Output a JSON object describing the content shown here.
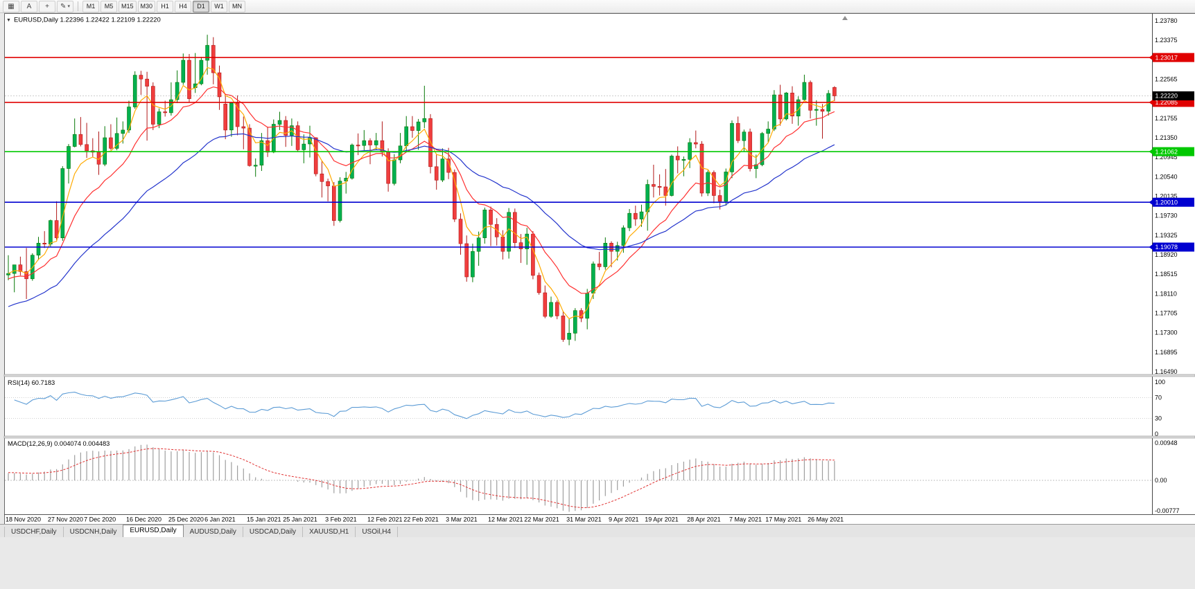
{
  "toolbar": {
    "icon_buttons": [
      {
        "name": "chart-grid",
        "glyph": "▦"
      },
      {
        "name": "text-tool",
        "glyph": "A"
      },
      {
        "name": "crosshair-tool",
        "glyph": "+"
      },
      {
        "name": "draw-tools",
        "glyph": "✎",
        "caret": "▾"
      }
    ],
    "timeframes": [
      "M1",
      "M5",
      "M15",
      "M30",
      "H1",
      "H4",
      "D1",
      "W1",
      "MN"
    ],
    "active_timeframe": "D1"
  },
  "bottom_tabs": {
    "active": "EURUSD,Daily",
    "tabs": [
      "USDCHF,Daily",
      "USDCNH,Daily",
      "EURUSD,Daily",
      "AUDUSD,Daily",
      "USDCAD,Daily",
      "XAUUSD,H1",
      "USOil,H4"
    ]
  },
  "chart_data": [
    {
      "type": "candlestick",
      "symbol": "EURUSD",
      "timeframe": "Daily",
      "title": "EURUSD,Daily",
      "collapse_icon": "▼",
      "quote": {
        "open": "1.22396",
        "high": "1.22422",
        "low": "1.22109",
        "close": "1.22220"
      },
      "ylim": [
        1.16433,
        1.23924
      ],
      "bull_color": "#00b050",
      "bull_border": "#067806",
      "bear_color": "#f03e3e",
      "bear_border": "#b01818",
      "y_ticks": [
        "1.23780",
        "1.23375",
        "1.22970",
        "1.22565",
        "1.22160",
        "1.21755",
        "1.21350",
        "1.20945",
        "1.20540",
        "1.20135",
        "1.19730",
        "1.19325",
        "1.18920",
        "1.18515",
        "1.18110",
        "1.17705",
        "1.17300",
        "1.16895",
        "1.16490"
      ],
      "x_ticks": [
        {
          "label": "18 Nov 2020",
          "index": 0
        },
        {
          "label": "27 Nov 2020",
          "index": 7
        },
        {
          "label": "7 Dec 2020",
          "index": 13
        },
        {
          "label": "16 Dec 2020",
          "index": 20
        },
        {
          "label": "25 Dec 2020",
          "index": 27
        },
        {
          "label": "6 Jan 2021",
          "index": 33
        },
        {
          "label": "15 Jan 2021",
          "index": 40
        },
        {
          "label": "25 Jan 2021",
          "index": 46
        },
        {
          "label": "3 Feb 2021",
          "index": 53
        },
        {
          "label": "12 Feb 2021",
          "index": 60
        },
        {
          "label": "22 Feb 2021",
          "index": 66
        },
        {
          "label": "3 Mar 2021",
          "index": 73
        },
        {
          "label": "12 Mar 2021",
          "index": 80
        },
        {
          "label": "22 Mar 2021",
          "index": 86
        },
        {
          "label": "31 Mar 2021",
          "index": 93
        },
        {
          "label": "9 Apr 2021",
          "index": 100
        },
        {
          "label": "19 Apr 2021",
          "index": 106
        },
        {
          "label": "28 Apr 2021",
          "index": 113
        },
        {
          "label": "7 May 2021",
          "index": 120
        },
        {
          "label": "17 May 2021",
          "index": 126
        },
        {
          "label": "26 May 2021",
          "index": 133
        }
      ],
      "horizontal_lines": [
        {
          "price": 1.23017,
          "label": "1.23017",
          "color": "#e00000"
        },
        {
          "price": 1.22085,
          "label": "1.22085",
          "color": "#e00000"
        },
        {
          "price": 1.21062,
          "label": "1.21062",
          "color": "#00c800"
        },
        {
          "price": 1.2001,
          "label": "1.20010",
          "color": "#0000d0"
        },
        {
          "price": 1.19078,
          "label": "1.19078",
          "color": "#0000d0"
        }
      ],
      "current_price": {
        "value": 1.2222,
        "label": "1.22220",
        "badge_color": "#000000"
      },
      "moving_averages": [
        {
          "type": "ema",
          "period": 5,
          "color": "#ffaa00",
          "seed": 1.1853
        },
        {
          "type": "ema",
          "period": 13,
          "color": "#ff3030",
          "seed": 1.184
        },
        {
          "type": "ema",
          "period": 34,
          "color": "#2233cc",
          "seed": 1.178
        }
      ],
      "candles": [
        [
          1.185,
          1.1891,
          1.1839,
          1.1853
        ],
        [
          1.1853,
          1.1868,
          1.1814,
          1.1871
        ],
        [
          1.1871,
          1.1888,
          1.1849,
          1.1857
        ],
        [
          1.1857,
          1.1906,
          1.18,
          1.1842
        ],
        [
          1.1842,
          1.1895,
          1.1838,
          1.1891
        ],
        [
          1.1891,
          1.1929,
          1.1881,
          1.1916
        ],
        [
          1.1916,
          1.1941,
          1.1906,
          1.1914
        ],
        [
          1.1914,
          1.1965,
          1.1909,
          1.1963
        ],
        [
          1.1963,
          1.2003,
          1.1923,
          1.1927
        ],
        [
          1.1927,
          1.2076,
          1.1921,
          1.2071
        ],
        [
          1.2071,
          1.2122,
          1.204,
          1.2117
        ],
        [
          1.2117,
          1.2175,
          1.2115,
          1.2142
        ],
        [
          1.2142,
          1.2178,
          1.2117,
          1.2121
        ],
        [
          1.2121,
          1.2166,
          1.2093,
          1.2108
        ],
        [
          1.2108,
          1.2134,
          1.2095,
          1.2105
        ],
        [
          1.2105,
          1.2148,
          1.2058,
          1.208
        ],
        [
          1.208,
          1.2159,
          1.2076,
          1.2135
        ],
        [
          1.2135,
          1.2163,
          1.211,
          1.2113
        ],
        [
          1.2113,
          1.2177,
          1.2109,
          1.2144
        ],
        [
          1.2144,
          1.2169,
          1.2123,
          1.2151
        ],
        [
          1.2151,
          1.2212,
          1.2145,
          1.2199
        ],
        [
          1.2199,
          1.2273,
          1.2195,
          1.2265
        ],
        [
          1.2265,
          1.2274,
          1.2224,
          1.2257
        ],
        [
          1.2257,
          1.2272,
          1.2129,
          1.2242
        ],
        [
          1.2242,
          1.225,
          1.2151,
          1.2163
        ],
        [
          1.2163,
          1.2196,
          1.2155,
          1.2189
        ],
        [
          1.2189,
          1.2212,
          1.2179,
          1.2187
        ],
        [
          1.2187,
          1.225,
          1.2181,
          1.2214
        ],
        [
          1.2214,
          1.2275,
          1.2207,
          1.225
        ],
        [
          1.225,
          1.231,
          1.2245,
          1.2296
        ],
        [
          1.2296,
          1.2309,
          1.2209,
          1.2216
        ],
        [
          1.2239,
          1.2311,
          1.2228,
          1.2247
        ],
        [
          1.2247,
          1.2303,
          1.2244,
          1.2296
        ],
        [
          1.2296,
          1.2349,
          1.2266,
          1.2327
        ],
        [
          1.2327,
          1.2344,
          1.2246,
          1.227
        ],
        [
          1.227,
          1.2285,
          1.2193,
          1.222
        ],
        [
          1.2205,
          1.2226,
          1.2132,
          1.2151
        ],
        [
          1.2151,
          1.2209,
          1.2137,
          1.2207
        ],
        [
          1.2207,
          1.2223,
          1.214,
          1.2158
        ],
        [
          1.2158,
          1.2179,
          1.2111,
          1.2155
        ],
        [
          1.2155,
          1.2163,
          1.2075,
          1.2077
        ],
        [
          1.2077,
          1.2092,
          1.2054,
          1.2078
        ],
        [
          1.2078,
          1.2145,
          1.2066,
          1.2129
        ],
        [
          1.2129,
          1.2158,
          1.2095,
          1.2105
        ],
        [
          1.2105,
          1.2173,
          1.2103,
          1.2163
        ],
        [
          1.2163,
          1.2189,
          1.2151,
          1.2171
        ],
        [
          1.2171,
          1.218,
          1.2116,
          1.214
        ],
        [
          1.214,
          1.2175,
          1.2118,
          1.216
        ],
        [
          1.216,
          1.2169,
          1.2106,
          1.211
        ],
        [
          1.211,
          1.2142,
          1.2082,
          1.2122
        ],
        [
          1.2122,
          1.216,
          1.2094,
          1.2135
        ],
        [
          1.2135,
          1.2136,
          1.2055,
          1.206
        ],
        [
          1.206,
          1.2087,
          1.2011,
          1.2044
        ],
        [
          1.2044,
          1.205,
          1.2003,
          1.2035
        ],
        [
          1.2035,
          1.2043,
          1.1952,
          1.1963
        ],
        [
          1.1963,
          1.2053,
          1.1959,
          1.2045
        ],
        [
          1.2045,
          1.2064,
          1.2019,
          1.2051
        ],
        [
          1.2051,
          1.2123,
          1.2048,
          1.212
        ],
        [
          1.212,
          1.2144,
          1.2099,
          1.2119
        ],
        [
          1.2119,
          1.2151,
          1.2109,
          1.2129
        ],
        [
          1.2129,
          1.2134,
          1.208,
          1.212
        ],
        [
          1.212,
          1.2145,
          1.211,
          1.2129
        ],
        [
          1.2129,
          1.2169,
          1.2096,
          1.2105
        ],
        [
          1.2105,
          1.2113,
          1.2023,
          1.204
        ],
        [
          1.204,
          1.2101,
          1.2036,
          1.2089
        ],
        [
          1.2089,
          1.2145,
          1.2082,
          1.2118
        ],
        [
          1.2118,
          1.218,
          1.2107,
          1.2158
        ],
        [
          1.2158,
          1.218,
          1.2135,
          1.215
        ],
        [
          1.215,
          1.2174,
          1.211,
          1.2168
        ],
        [
          1.2168,
          1.2243,
          1.2155,
          1.2175
        ],
        [
          1.2175,
          1.2184,
          1.2061,
          1.2075
        ],
        [
          1.2075,
          1.2101,
          1.2027,
          1.2047
        ],
        [
          1.2047,
          1.2113,
          1.2043,
          1.2091
        ],
        [
          1.2091,
          1.2114,
          1.2049,
          1.2063
        ],
        [
          1.2063,
          1.2069,
          1.196,
          1.1966
        ],
        [
          1.1966,
          1.1978,
          1.1892,
          1.1915
        ],
        [
          1.1915,
          1.1932,
          1.1836,
          1.1846
        ],
        [
          1.1846,
          1.1915,
          1.1835,
          1.1899
        ],
        [
          1.1899,
          1.194,
          1.1869,
          1.1927
        ],
        [
          1.1927,
          1.199,
          1.1915,
          1.1985
        ],
        [
          1.1985,
          1.1992,
          1.191,
          1.1955
        ],
        [
          1.1955,
          1.1968,
          1.1911,
          1.1929
        ],
        [
          1.1929,
          1.1943,
          1.1882,
          1.1899
        ],
        [
          1.1899,
          1.1989,
          1.1884,
          1.198
        ],
        [
          1.198,
          1.1988,
          1.1906,
          1.1917
        ],
        [
          1.1917,
          1.1935,
          1.1875,
          1.1904
        ],
        [
          1.1904,
          1.1948,
          1.1871,
          1.1935
        ],
        [
          1.1935,
          1.1941,
          1.1841,
          1.1849
        ],
        [
          1.1849,
          1.1855,
          1.1809,
          1.1813
        ],
        [
          1.1813,
          1.1828,
          1.176,
          1.1764
        ],
        [
          1.1764,
          1.1805,
          1.1761,
          1.1793
        ],
        [
          1.1793,
          1.1797,
          1.1758,
          1.1765
        ],
        [
          1.1765,
          1.1775,
          1.1711,
          1.1716
        ],
        [
          1.1716,
          1.176,
          1.1704,
          1.1729
        ],
        [
          1.1729,
          1.1781,
          1.1713,
          1.1776
        ],
        [
          1.1776,
          1.1781,
          1.1752,
          1.176
        ],
        [
          1.176,
          1.1821,
          1.1737,
          1.1812
        ],
        [
          1.1812,
          1.1878,
          1.18,
          1.1873
        ],
        [
          1.1873,
          1.1898,
          1.186,
          1.1867
        ],
        [
          1.1867,
          1.1928,
          1.1861,
          1.1916
        ],
        [
          1.1916,
          1.192,
          1.1866,
          1.1899
        ],
        [
          1.1899,
          1.1919,
          1.188,
          1.1911
        ],
        [
          1.1911,
          1.1953,
          1.1896,
          1.1948
        ],
        [
          1.1948,
          1.1987,
          1.1941,
          1.1978
        ],
        [
          1.1978,
          1.1994,
          1.1952,
          1.1966
        ],
        [
          1.1966,
          1.1996,
          1.195,
          1.1981
        ],
        [
          1.1981,
          1.2048,
          1.1942,
          1.2038
        ],
        [
          1.2038,
          1.2079,
          1.2011,
          1.2034
        ],
        [
          1.2034,
          1.2059,
          1.2015,
          1.2033
        ],
        [
          1.2033,
          1.207,
          1.1994,
          1.2015
        ],
        [
          1.2015,
          1.21,
          1.2013,
          1.2097
        ],
        [
          1.2097,
          1.2117,
          1.2061,
          1.2089
        ],
        [
          1.2089,
          1.2096,
          1.2055,
          1.209
        ],
        [
          1.209,
          1.2134,
          1.2072,
          1.2125
        ],
        [
          1.2125,
          1.215,
          1.2113,
          1.2122
        ],
        [
          1.2122,
          1.2128,
          1.2013,
          1.202
        ],
        [
          1.202,
          1.2067,
          1.2014,
          1.2063
        ],
        [
          1.2063,
          1.2067,
          1.1999,
          1.2015
        ],
        [
          1.2015,
          1.2027,
          1.1986,
          1.2003
        ],
        [
          1.2003,
          1.2071,
          1.1994,
          1.2064
        ],
        [
          1.2064,
          1.2171,
          1.2051,
          1.2165
        ],
        [
          1.2165,
          1.2179,
          1.2124,
          1.2129
        ],
        [
          1.2129,
          1.2152,
          1.2106,
          1.2147
        ],
        [
          1.2147,
          1.2154,
          1.2065,
          1.2071
        ],
        [
          1.2071,
          1.21,
          1.2051,
          1.2079
        ],
        [
          1.2079,
          1.2147,
          1.2076,
          1.2144
        ],
        [
          1.2144,
          1.2169,
          1.2126,
          1.2153
        ],
        [
          1.2153,
          1.2234,
          1.2149,
          1.2224
        ],
        [
          1.2224,
          1.2245,
          1.216,
          1.2174
        ],
        [
          1.2174,
          1.223,
          1.2171,
          1.2228
        ],
        [
          1.2228,
          1.2242,
          1.2164,
          1.218
        ],
        [
          1.218,
          1.2221,
          1.216,
          1.2214
        ],
        [
          1.2214,
          1.2266,
          1.2212,
          1.225
        ],
        [
          1.225,
          1.2254,
          1.2175,
          1.2192
        ],
        [
          1.2192,
          1.2213,
          1.216,
          1.2194
        ],
        [
          1.2194,
          1.2205,
          1.2133,
          1.219
        ],
        [
          1.219,
          1.2234,
          1.2181,
          1.2227
        ],
        [
          1.22396,
          1.22422,
          1.22109,
          1.2222
        ]
      ]
    },
    {
      "type": "line",
      "indicator": "RSI",
      "label": "RSI(14)",
      "current_value": "60.7183",
      "line_color": "#5b9bd5",
      "levels": [
        100,
        70,
        30,
        0
      ],
      "dotted_levels": [
        70,
        30
      ],
      "range": [
        0,
        100
      ]
    },
    {
      "type": "macd",
      "label": "MACD(12,26,9)",
      "main_value": "0.004074",
      "signal_value": "0.004483",
      "histogram_color": "#9e9e9e",
      "signal_color": "#e03030",
      "axis_labels": [
        "0.00948",
        "0.00",
        "-0.00777"
      ]
    }
  ]
}
